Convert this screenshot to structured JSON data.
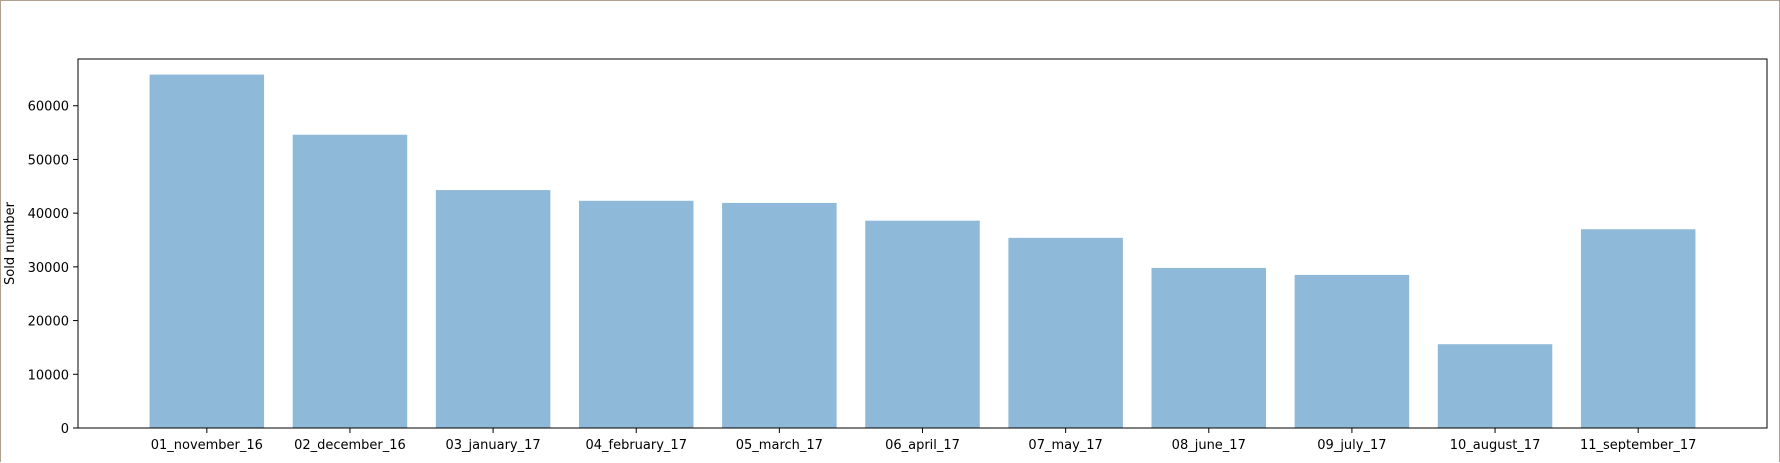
{
  "chart_data": {
    "type": "bar",
    "title": "",
    "xlabel": "",
    "ylabel": "Sold number",
    "ylim": [
      0,
      68700
    ],
    "yticks": [
      0,
      10000,
      20000,
      30000,
      40000,
      50000,
      60000
    ],
    "grid": false,
    "bar_color": "#8fb9d9",
    "categories": [
      "01_november_16",
      "02_december_16",
      "03_january_17",
      "04_february_17",
      "05_march_17",
      "06_april_17",
      "07_may_17",
      "08_june_17",
      "09_july_17",
      "10_august_17",
      "11_september_17"
    ],
    "values": [
      65800,
      54600,
      44300,
      42300,
      41900,
      38600,
      35400,
      29800,
      28500,
      15600,
      37000
    ]
  }
}
